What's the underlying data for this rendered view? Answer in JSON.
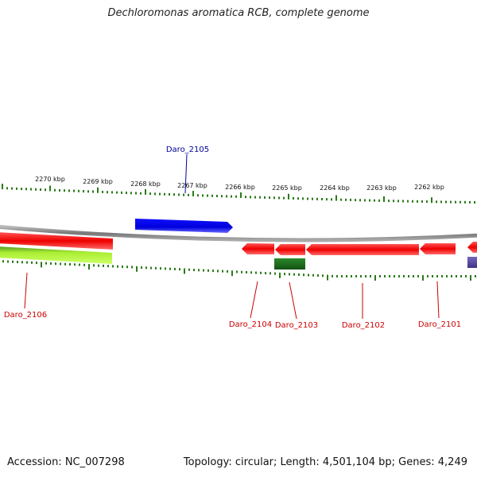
{
  "title": "Dechloromonas aromatica RCB, complete genome",
  "footer": {
    "accession": "Accession: NC_007298",
    "summary": "Topology: circular; Length: 4,501,104 bp; Genes: 4,249"
  },
  "scale_labels": [
    "2270 kbp",
    "2269 kbp",
    "2268 kbp",
    "2267 kbp",
    "2266 kbp",
    "2265 kbp",
    "2264 kbp",
    "2263 kbp",
    "2262 kbp"
  ],
  "genes": [
    {
      "name": "Daro_2105",
      "color": "#0000ee",
      "label_color": "#000099",
      "track": "outer-forward"
    },
    {
      "name": "Daro_2106",
      "color": "#ff0000",
      "label_color": "#cc0000",
      "track": "reverse"
    },
    {
      "name": "Daro_2104",
      "color": "#ff0000",
      "label_color": "#cc0000",
      "track": "reverse"
    },
    {
      "name": "Daro_2103",
      "color": "#ff0000",
      "label_color": "#cc0000",
      "track": "reverse"
    },
    {
      "name": "Daro_2102",
      "color": "#ff0000",
      "label_color": "#cc0000",
      "track": "reverse"
    },
    {
      "name": "Daro_2101",
      "color": "#ff0000",
      "label_color": "#cc0000",
      "track": "reverse"
    }
  ],
  "feature_colors": {
    "backbone": "#888888",
    "ticks": "#2a7a1a",
    "cog_green": "#1e7a1e",
    "cog_lime": "#aaee33",
    "cog_purple": "#5a4a99"
  }
}
